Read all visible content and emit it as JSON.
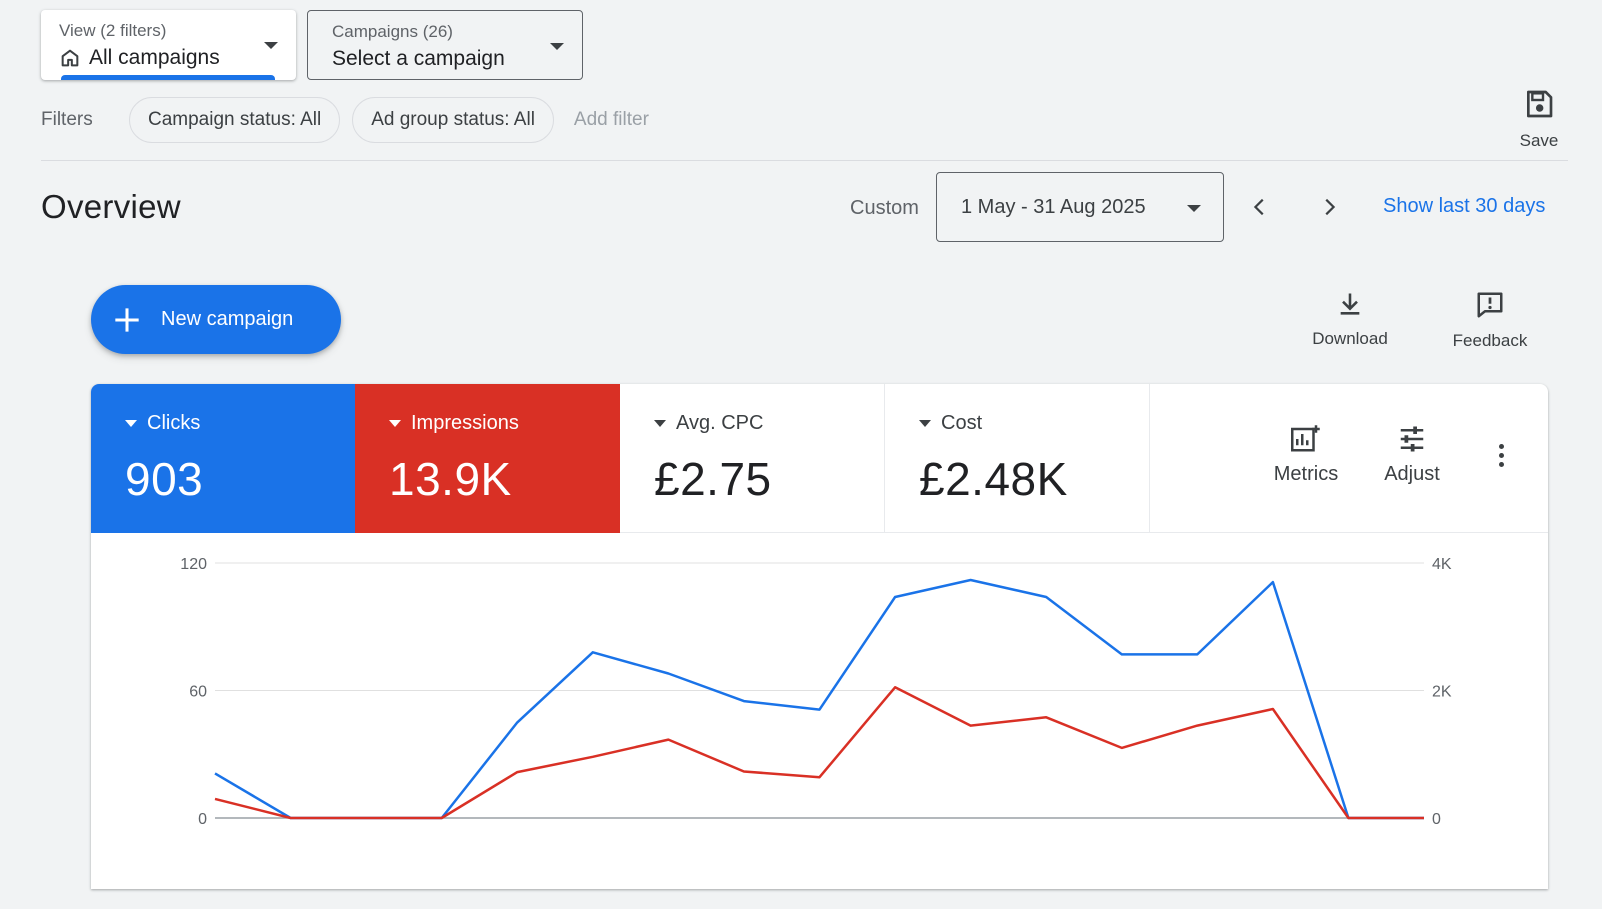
{
  "view_selector": {
    "label": "View (2 filters)",
    "value": "All campaigns",
    "icon": "home-icon"
  },
  "campaign_selector": {
    "label": "Campaigns (26)",
    "value": "Select a campaign"
  },
  "filters": {
    "label": "Filters",
    "chips": [
      "Campaign status: All",
      "Ad group status: All"
    ],
    "add_filter": "Add filter"
  },
  "save": {
    "label": "Save",
    "icon": "save-icon"
  },
  "overview": {
    "title": "Overview",
    "custom_label": "Custom",
    "date_range": "1 May - 31 Aug 2025",
    "show_last": "Show last 30 days"
  },
  "new_campaign": {
    "label": "New campaign"
  },
  "tools": {
    "download": "Download",
    "feedback": "Feedback"
  },
  "metrics": [
    {
      "name": "Clicks",
      "value": "903",
      "color": "#1a73e8"
    },
    {
      "name": "Impressions",
      "value": "13.9K",
      "color": "#d93025"
    },
    {
      "name": "Avg. CPC",
      "value": "£2.75"
    },
    {
      "name": "Cost",
      "value": "£2.48K"
    }
  ],
  "card_tools": {
    "metrics": "Metrics",
    "adjust": "Adjust"
  },
  "chart_data": {
    "type": "line",
    "y_left": {
      "ticks": [
        "120",
        "60",
        "0"
      ],
      "range": [
        0,
        120
      ]
    },
    "y_right": {
      "ticks": [
        "4K",
        "2K",
        "0"
      ],
      "range": [
        0,
        4000
      ]
    },
    "grid": true,
    "series": [
      {
        "name": "Clicks",
        "axis": "left",
        "color": "#1a73e8",
        "values": [
          21,
          0,
          0,
          0,
          45,
          78,
          68,
          55,
          51,
          104,
          112,
          104,
          77,
          77,
          111,
          0,
          0
        ]
      },
      {
        "name": "Impressions",
        "axis": "right",
        "color": "#d93025",
        "values": [
          300,
          0,
          0,
          0,
          720,
          960,
          1230,
          730,
          640,
          2050,
          1450,
          1580,
          1100,
          1450,
          1710,
          0,
          0
        ]
      }
    ]
  }
}
